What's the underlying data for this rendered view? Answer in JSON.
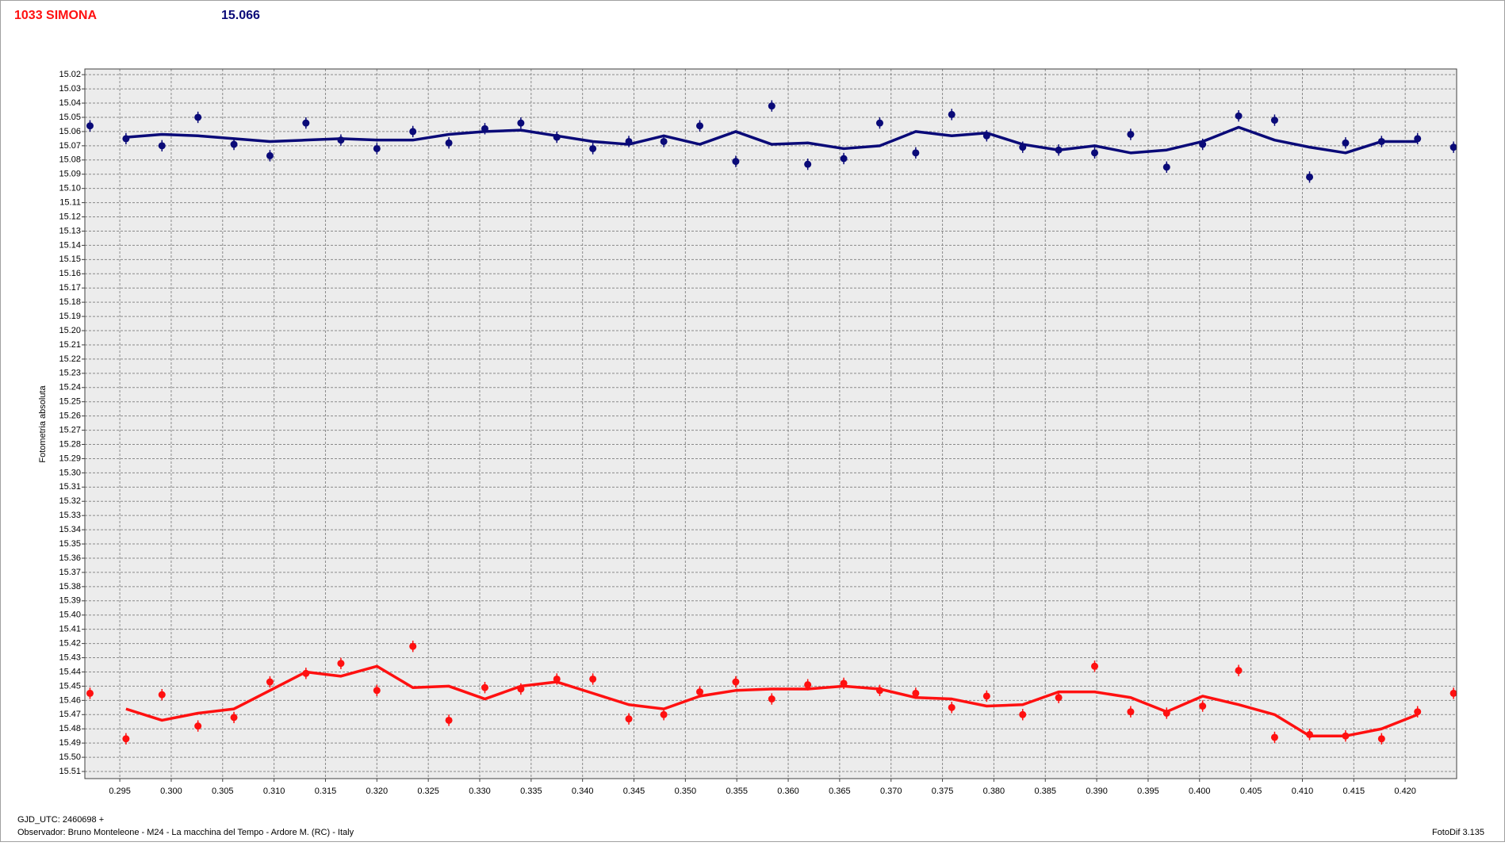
{
  "chart_data": {
    "type": "scatter",
    "title": "1033 SIMONA",
    "header_value": 15.066,
    "y_label": "Fotometria absoluta",
    "footer_date": "GJD_UTC: 2460698 +",
    "footer_observer": "Observador: Bruno Monteleone - M24 - La macchina del Tempo - Ardore M. (RC) - Italy",
    "footer_software": "FotoDif 3.135",
    "y_inverted": true,
    "grid": true,
    "x": [
      0.2921,
      0.2956,
      0.2991,
      0.3026,
      0.3061,
      0.3096,
      0.3131,
      0.3165,
      0.32,
      0.3235,
      0.327,
      0.3305,
      0.334,
      0.3375,
      0.341,
      0.3445,
      0.3479,
      0.3514,
      0.3549,
      0.3584,
      0.3619,
      0.3654,
      0.3689,
      0.3724,
      0.3759,
      0.3793,
      0.3828,
      0.3863,
      0.3898,
      0.3933,
      0.3968,
      0.4003,
      0.4038,
      0.4073,
      0.4107,
      0.4142,
      0.4177,
      0.4212,
      0.4247
    ],
    "series": [
      {
        "style": "points",
        "color": "#0a0a78",
        "error": 0.004,
        "values": [
          15.056,
          15.065,
          15.07,
          15.05,
          15.069,
          15.077,
          15.054,
          15.066,
          15.072,
          15.06,
          15.068,
          15.058,
          15.054,
          15.064,
          15.072,
          15.067,
          15.067,
          15.056,
          15.081,
          15.042,
          15.083,
          15.079,
          15.054,
          15.075,
          15.048,
          15.063,
          15.071,
          15.073,
          15.075,
          15.062,
          15.085,
          15.069,
          15.049,
          15.052,
          15.092,
          15.068,
          15.067,
          15.065,
          15.071
        ]
      },
      {
        "style": "line",
        "color": "#0a0a78",
        "values": [
          null,
          15.064,
          15.062,
          15.063,
          15.065,
          15.067,
          15.066,
          15.065,
          15.066,
          15.066,
          15.062,
          15.06,
          15.059,
          15.063,
          15.067,
          15.069,
          15.063,
          15.069,
          15.06,
          15.069,
          15.068,
          15.072,
          15.07,
          15.06,
          15.063,
          15.061,
          15.069,
          15.073,
          15.07,
          15.075,
          15.073,
          15.067,
          15.057,
          15.066,
          15.071,
          15.075,
          15.067,
          15.067,
          null
        ]
      },
      {
        "style": "points",
        "color": "#ff1010",
        "error": 0.004,
        "values": [
          15.455,
          15.487,
          15.456,
          15.478,
          15.472,
          15.447,
          15.441,
          15.434,
          15.453,
          15.422,
          15.474,
          15.451,
          15.452,
          15.445,
          15.445,
          15.473,
          15.47,
          15.454,
          15.447,
          15.459,
          15.449,
          15.448,
          15.453,
          15.455,
          15.465,
          15.457,
          15.47,
          15.458,
          15.436,
          15.468,
          15.469,
          15.464,
          15.439,
          15.486,
          15.484,
          15.485,
          15.487,
          15.468,
          15.455
        ]
      },
      {
        "style": "line",
        "color": "#ff1010",
        "values": [
          null,
          15.466,
          15.474,
          15.469,
          15.466,
          15.453,
          15.44,
          15.443,
          15.436,
          15.451,
          15.45,
          15.459,
          15.45,
          15.447,
          15.455,
          15.463,
          15.466,
          15.457,
          15.453,
          15.452,
          15.452,
          15.45,
          15.452,
          15.458,
          15.459,
          15.464,
          15.463,
          15.454,
          15.454,
          15.458,
          15.468,
          15.457,
          15.463,
          15.47,
          15.485,
          15.485,
          15.48,
          15.47,
          null
        ]
      }
    ],
    "xlim": [
      0.2916,
      0.425
    ],
    "ylim": [
      15.016,
      15.515
    ],
    "xticks": [
      0.295,
      {
        "value": 0.3,
        "label": "0.300"
      },
      0.305,
      {
        "value": 0.31,
        "label": "0.310"
      },
      0.315,
      {
        "value": 0.32,
        "label": "0.320"
      },
      0.325,
      {
        "value": 0.33,
        "label": "0.330"
      },
      0.335,
      {
        "value": 0.34,
        "label": "0.340"
      },
      0.345,
      {
        "value": 0.35,
        "label": "0.350"
      },
      0.355,
      {
        "value": 0.36,
        "label": "0.360"
      },
      0.365,
      {
        "value": 0.37,
        "label": "0.370"
      },
      0.375,
      {
        "value": 0.38,
        "label": "0.380"
      },
      0.385,
      {
        "value": 0.39,
        "label": "0.390"
      },
      0.395,
      {
        "value": 0.4,
        "label": "0.400"
      },
      0.405,
      {
        "value": 0.41,
        "label": "0.410"
      },
      0.415,
      {
        "value": 0.42,
        "label": "0.420"
      }
    ],
    "yticks": [
      15.02,
      15.03,
      15.04,
      15.05,
      15.06,
      15.07,
      15.08,
      15.09,
      {
        "value": 15.1,
        "label": "15.10"
      },
      15.11,
      15.12,
      15.13,
      15.14,
      15.15,
      15.16,
      15.17,
      15.18,
      15.19,
      {
        "value": 15.2,
        "label": "15.20"
      },
      15.21,
      15.22,
      15.23,
      15.24,
      15.25,
      15.26,
      15.27,
      15.28,
      15.29,
      {
        "value": 15.3,
        "label": "15.30"
      },
      15.31,
      15.32,
      15.33,
      15.34,
      15.35,
      15.36,
      15.37,
      15.38,
      15.39,
      {
        "value": 15.4,
        "label": "15.40"
      },
      15.41,
      15.42,
      15.43,
      15.44,
      15.45,
      15.46,
      15.47,
      15.48,
      15.49,
      {
        "value": 15.5,
        "label": "15.50"
      },
      15.51
    ]
  }
}
